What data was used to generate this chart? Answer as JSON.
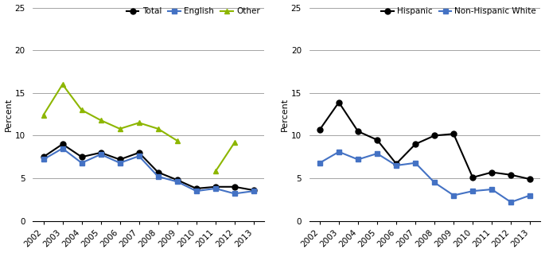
{
  "years": [
    2002,
    2003,
    2004,
    2005,
    2006,
    2007,
    2008,
    2009,
    2010,
    2011,
    2012,
    2013
  ],
  "left": {
    "total": [
      7.5,
      9.0,
      7.5,
      8.0,
      7.2,
      8.0,
      5.7,
      4.8,
      3.8,
      4.0,
      4.0,
      3.6
    ],
    "english": [
      7.2,
      8.5,
      6.8,
      7.8,
      6.8,
      7.6,
      5.2,
      4.6,
      3.5,
      3.8,
      3.2,
      3.5
    ],
    "other": [
      12.4,
      16.0,
      13.0,
      11.8,
      10.8,
      11.5,
      10.8,
      9.4,
      null,
      5.8,
      9.2,
      null
    ]
  },
  "right": {
    "hispanic": [
      10.7,
      13.9,
      10.5,
      9.5,
      6.7,
      9.0,
      10.0,
      10.2,
      5.1,
      5.7,
      5.4,
      4.9
    ],
    "non_hispanic_white": [
      6.8,
      8.1,
      7.2,
      7.9,
      6.5,
      6.8,
      4.5,
      3.0,
      3.5,
      3.7,
      2.2,
      3.0
    ]
  },
  "colors": {
    "total": "#000000",
    "english": "#4472c4",
    "other": "#8db600",
    "hispanic": "#000000",
    "non_hispanic_white": "#4472c4"
  },
  "ylim": [
    0,
    25
  ],
  "yticks": [
    0,
    5,
    10,
    15,
    20,
    25
  ],
  "ylabel": "Percent"
}
